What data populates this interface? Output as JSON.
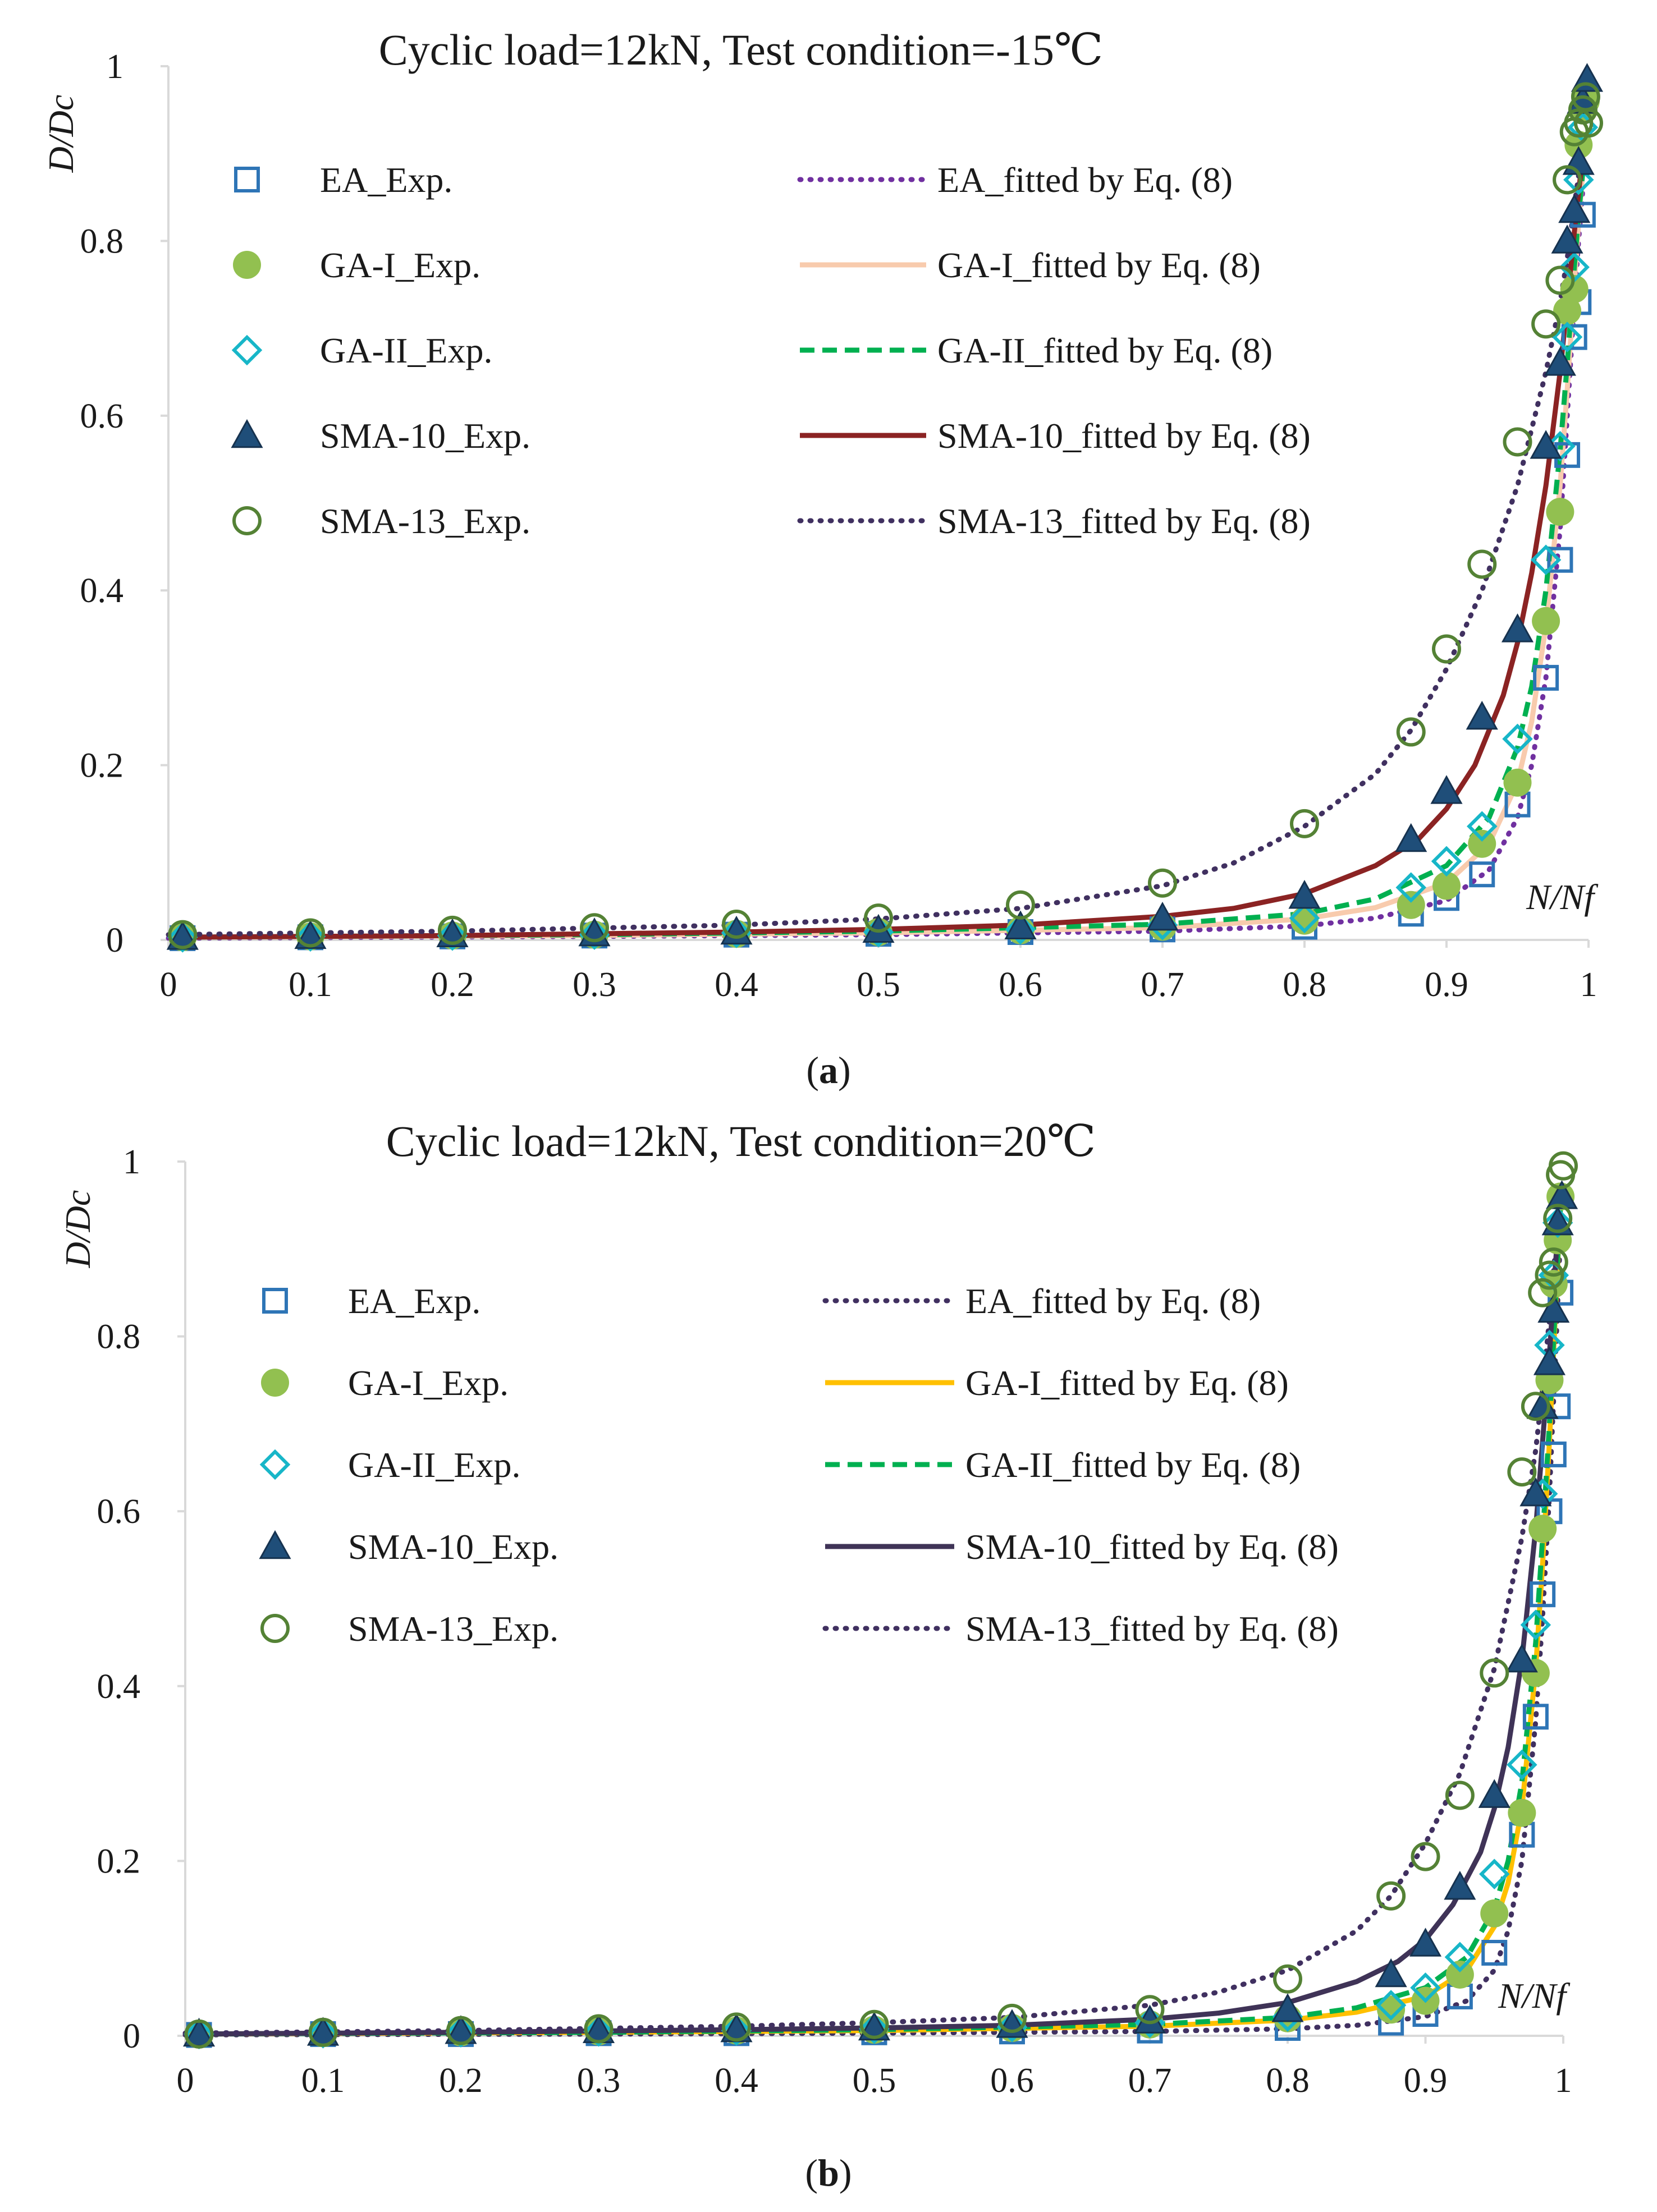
{
  "chart_data": [
    {
      "type": "line",
      "title": "Cyclic load=12kN, Test condition=-15℃",
      "caption": "(a)",
      "caption_bold": "a",
      "xlabel": "N/Nf",
      "ylabel": "D/Dc",
      "xlim": [
        0,
        1
      ],
      "ylim": [
        0,
        1
      ],
      "xticks": [
        "0",
        "0.1",
        "0.2",
        "0.3",
        "0.4",
        "0.5",
        "0.6",
        "0.7",
        "0.8",
        "0.9",
        "1"
      ],
      "yticks": [
        "0",
        "0.2",
        "0.4",
        "0.6",
        "0.8",
        "1"
      ],
      "series": [
        {
          "name": "EA_Exp.",
          "kind": "scatter",
          "marker": "square",
          "color": "#2e75b6",
          "x": [
            0.01,
            0.1,
            0.2,
            0.3,
            0.4,
            0.5,
            0.6,
            0.7,
            0.8,
            0.875,
            0.9,
            0.925,
            0.95,
            0.97,
            0.98,
            0.985,
            0.99,
            0.993,
            0.996
          ],
          "y": [
            0.002,
            0.003,
            0.004,
            0.005,
            0.006,
            0.007,
            0.009,
            0.012,
            0.015,
            0.03,
            0.048,
            0.075,
            0.155,
            0.3,
            0.435,
            0.555,
            0.69,
            0.73,
            0.83
          ]
        },
        {
          "name": "GA-I_Exp.",
          "kind": "scatter",
          "marker": "filled-circle",
          "color": "#92c050",
          "x": [
            0.01,
            0.1,
            0.2,
            0.3,
            0.4,
            0.5,
            0.6,
            0.7,
            0.8,
            0.875,
            0.9,
            0.925,
            0.95,
            0.97,
            0.98,
            0.985,
            0.99,
            0.993,
            0.996,
            0.998
          ],
          "y": [
            0.003,
            0.004,
            0.005,
            0.006,
            0.007,
            0.009,
            0.011,
            0.015,
            0.022,
            0.04,
            0.062,
            0.11,
            0.18,
            0.365,
            0.49,
            0.72,
            0.745,
            0.91,
            0.95,
            0.96
          ]
        },
        {
          "name": "GA-II_Exp.",
          "kind": "scatter",
          "marker": "diamond",
          "color": "#17b6c8",
          "x": [
            0.01,
            0.1,
            0.2,
            0.3,
            0.4,
            0.5,
            0.6,
            0.7,
            0.8,
            0.875,
            0.9,
            0.925,
            0.95,
            0.97,
            0.98,
            0.985,
            0.99,
            0.993,
            0.996
          ],
          "y": [
            0.003,
            0.004,
            0.005,
            0.006,
            0.008,
            0.009,
            0.012,
            0.017,
            0.025,
            0.06,
            0.09,
            0.13,
            0.23,
            0.435,
            0.565,
            0.69,
            0.77,
            0.87,
            0.93
          ]
        },
        {
          "name": "SMA-10_Exp.",
          "kind": "scatter",
          "marker": "triangle",
          "color": "#1f4e79",
          "x": [
            0.01,
            0.1,
            0.2,
            0.3,
            0.4,
            0.5,
            0.6,
            0.7,
            0.8,
            0.875,
            0.9,
            0.925,
            0.95,
            0.97,
            0.98,
            0.985,
            0.99,
            0.993,
            0.996,
            0.999
          ],
          "y": [
            0.003,
            0.004,
            0.006,
            0.007,
            0.009,
            0.011,
            0.015,
            0.025,
            0.05,
            0.115,
            0.17,
            0.255,
            0.355,
            0.565,
            0.66,
            0.8,
            0.835,
            0.89,
            0.96,
            0.985
          ]
        },
        {
          "name": "SMA-13_Exp.",
          "kind": "scatter",
          "marker": "open-circle",
          "color": "#548235",
          "x": [
            0.01,
            0.1,
            0.2,
            0.3,
            0.4,
            0.5,
            0.6,
            0.7,
            0.8,
            0.875,
            0.9,
            0.925,
            0.95,
            0.97,
            0.98,
            0.985,
            0.99,
            0.993,
            0.996,
            0.998,
            1.0
          ],
          "y": [
            0.006,
            0.008,
            0.011,
            0.014,
            0.018,
            0.025,
            0.04,
            0.065,
            0.133,
            0.238,
            0.333,
            0.43,
            0.57,
            0.705,
            0.755,
            0.87,
            0.925,
            0.935,
            0.95,
            0.965,
            0.935
          ]
        },
        {
          "name": "EA_fitted by Eq. (8)",
          "kind": "line",
          "dash": "dot",
          "color": "#7030a0",
          "x": [
            0.0,
            0.3,
            0.5,
            0.7,
            0.8,
            0.85,
            0.9,
            0.93,
            0.95,
            0.96,
            0.97,
            0.98,
            0.985,
            0.99,
            0.993,
            0.996
          ],
          "y": [
            0.002,
            0.004,
            0.006,
            0.01,
            0.016,
            0.025,
            0.045,
            0.08,
            0.14,
            0.2,
            0.3,
            0.47,
            0.6,
            0.73,
            0.8,
            0.86
          ]
        },
        {
          "name": "GA-I_fitted by Eq. (8)",
          "kind": "line",
          "dash": "solid",
          "color": "#f8cbad",
          "x": [
            0.0,
            0.3,
            0.5,
            0.7,
            0.8,
            0.85,
            0.9,
            0.93,
            0.95,
            0.96,
            0.97,
            0.98,
            0.985,
            0.99,
            0.993,
            0.996
          ],
          "y": [
            0.003,
            0.005,
            0.008,
            0.014,
            0.024,
            0.037,
            0.065,
            0.11,
            0.18,
            0.25,
            0.36,
            0.52,
            0.63,
            0.75,
            0.82,
            0.88
          ]
        },
        {
          "name": "GA-II_fitted by Eq. (8)",
          "kind": "line",
          "dash": "dash",
          "color": "#00b050",
          "x": [
            0.0,
            0.3,
            0.5,
            0.7,
            0.8,
            0.85,
            0.9,
            0.93,
            0.95,
            0.96,
            0.97,
            0.98,
            0.985,
            0.99,
            0.993,
            0.996
          ],
          "y": [
            0.003,
            0.006,
            0.01,
            0.018,
            0.03,
            0.047,
            0.085,
            0.14,
            0.22,
            0.29,
            0.4,
            0.56,
            0.66,
            0.77,
            0.83,
            0.88
          ]
        },
        {
          "name": "SMA-10_fitted by Eq. (8)",
          "kind": "line",
          "dash": "solid",
          "color": "#8b2323",
          "x": [
            0.0,
            0.2,
            0.4,
            0.5,
            0.6,
            0.7,
            0.75,
            0.8,
            0.85,
            0.88,
            0.9,
            0.92,
            0.94,
            0.95,
            0.96,
            0.97,
            0.98,
            0.985,
            0.99,
            0.996
          ],
          "y": [
            0.003,
            0.005,
            0.009,
            0.012,
            0.017,
            0.027,
            0.036,
            0.053,
            0.085,
            0.115,
            0.15,
            0.2,
            0.28,
            0.34,
            0.42,
            0.52,
            0.65,
            0.73,
            0.81,
            0.9
          ]
        },
        {
          "name": "SMA-13_fitted by Eq. (8)",
          "kind": "line",
          "dash": "dot",
          "color": "#403060",
          "x": [
            0.0,
            0.2,
            0.4,
            0.5,
            0.6,
            0.7,
            0.75,
            0.8,
            0.85,
            0.875,
            0.9,
            0.925,
            0.95,
            0.97,
            0.98,
            0.985,
            0.99,
            0.996
          ],
          "y": [
            0.006,
            0.01,
            0.017,
            0.024,
            0.036,
            0.062,
            0.088,
            0.13,
            0.19,
            0.24,
            0.31,
            0.4,
            0.52,
            0.65,
            0.73,
            0.78,
            0.84,
            0.91
          ]
        }
      ]
    },
    {
      "type": "line",
      "title": "Cyclic load=12kN, Test condition=20℃",
      "caption": "(b)",
      "caption_bold": "b",
      "xlabel": "N/Nf",
      "ylabel": "D/Dc",
      "xlim": [
        0,
        1
      ],
      "ylim": [
        0,
        1
      ],
      "xticks": [
        "0",
        "0.1",
        "0.2",
        "0.3",
        "0.4",
        "0.5",
        "0.6",
        "0.7",
        "0.8",
        "0.9",
        "1"
      ],
      "yticks": [
        "0",
        "0.2",
        "0.4",
        "0.6",
        "0.8",
        "1"
      ],
      "series": [
        {
          "name": "EA_Exp.",
          "kind": "scatter",
          "marker": "square",
          "color": "#2e75b6",
          "x": [
            0.01,
            0.1,
            0.2,
            0.3,
            0.4,
            0.5,
            0.6,
            0.7,
            0.8,
            0.875,
            0.9,
            0.925,
            0.95,
            0.97,
            0.98,
            0.985,
            0.99,
            0.993,
            0.996,
            0.998
          ],
          "y": [
            0.001,
            0.002,
            0.002,
            0.003,
            0.003,
            0.004,
            0.005,
            0.006,
            0.009,
            0.015,
            0.025,
            0.045,
            0.095,
            0.23,
            0.365,
            0.505,
            0.6,
            0.665,
            0.72,
            0.85
          ]
        },
        {
          "name": "GA-I_Exp.",
          "kind": "scatter",
          "marker": "filled-circle",
          "color": "#92c050",
          "x": [
            0.01,
            0.1,
            0.2,
            0.3,
            0.4,
            0.5,
            0.6,
            0.7,
            0.8,
            0.875,
            0.9,
            0.925,
            0.95,
            0.97,
            0.98,
            0.985,
            0.99,
            0.993,
            0.996,
            0.998
          ],
          "y": [
            0.002,
            0.003,
            0.004,
            0.005,
            0.006,
            0.007,
            0.009,
            0.013,
            0.02,
            0.03,
            0.04,
            0.07,
            0.14,
            0.255,
            0.415,
            0.58,
            0.75,
            0.86,
            0.91,
            0.96
          ]
        },
        {
          "name": "GA-II_Exp.",
          "kind": "scatter",
          "marker": "diamond",
          "color": "#17b6c8",
          "x": [
            0.01,
            0.1,
            0.2,
            0.3,
            0.4,
            0.5,
            0.6,
            0.7,
            0.8,
            0.875,
            0.9,
            0.925,
            0.95,
            0.97,
            0.98,
            0.985,
            0.99,
            0.993,
            0.996
          ],
          "y": [
            0.002,
            0.003,
            0.004,
            0.005,
            0.006,
            0.008,
            0.01,
            0.015,
            0.022,
            0.035,
            0.055,
            0.09,
            0.185,
            0.31,
            0.47,
            0.62,
            0.79,
            0.87,
            0.93
          ]
        },
        {
          "name": "SMA-10_Exp.",
          "kind": "scatter",
          "marker": "triangle",
          "color": "#1f4e79",
          "x": [
            0.01,
            0.1,
            0.2,
            0.3,
            0.4,
            0.5,
            0.6,
            0.7,
            0.8,
            0.875,
            0.9,
            0.925,
            0.95,
            0.97,
            0.98,
            0.985,
            0.99,
            0.993,
            0.996,
            0.999
          ],
          "y": [
            0.002,
            0.003,
            0.005,
            0.006,
            0.007,
            0.009,
            0.012,
            0.017,
            0.03,
            0.07,
            0.105,
            0.17,
            0.275,
            0.43,
            0.62,
            0.72,
            0.77,
            0.83,
            0.93,
            0.96
          ]
        },
        {
          "name": "SMA-13_Exp.",
          "kind": "scatter",
          "marker": "open-circle",
          "color": "#548235",
          "x": [
            0.01,
            0.1,
            0.2,
            0.3,
            0.4,
            0.5,
            0.6,
            0.7,
            0.8,
            0.875,
            0.9,
            0.925,
            0.95,
            0.97,
            0.98,
            0.985,
            0.99,
            0.993,
            0.996,
            0.998,
            1.0
          ],
          "y": [
            0.002,
            0.004,
            0.006,
            0.008,
            0.01,
            0.013,
            0.02,
            0.03,
            0.065,
            0.16,
            0.205,
            0.275,
            0.415,
            0.645,
            0.72,
            0.85,
            0.87,
            0.885,
            0.935,
            0.985,
            0.995
          ]
        },
        {
          "name": "EA_fitted by Eq. (8)",
          "kind": "line",
          "dash": "dot",
          "color": "#403060",
          "x": [
            0.0,
            0.3,
            0.5,
            0.7,
            0.8,
            0.85,
            0.9,
            0.93,
            0.95,
            0.96,
            0.97,
            0.98,
            0.985,
            0.99,
            0.995,
            0.998
          ],
          "y": [
            0.001,
            0.002,
            0.003,
            0.005,
            0.008,
            0.012,
            0.022,
            0.04,
            0.075,
            0.12,
            0.2,
            0.36,
            0.48,
            0.62,
            0.8,
            0.92
          ]
        },
        {
          "name": "GA-I_fitted by Eq. (8)",
          "kind": "line",
          "dash": "solid",
          "color": "#ffc000",
          "x": [
            0.0,
            0.3,
            0.5,
            0.7,
            0.8,
            0.85,
            0.9,
            0.93,
            0.95,
            0.96,
            0.97,
            0.98,
            0.985,
            0.99,
            0.995,
            0.998
          ],
          "y": [
            0.002,
            0.004,
            0.006,
            0.011,
            0.018,
            0.027,
            0.045,
            0.075,
            0.125,
            0.175,
            0.26,
            0.42,
            0.54,
            0.68,
            0.85,
            0.95
          ]
        },
        {
          "name": "GA-II_fitted by Eq. (8)",
          "kind": "line",
          "dash": "dash",
          "color": "#00b050",
          "x": [
            0.0,
            0.3,
            0.5,
            0.7,
            0.8,
            0.85,
            0.9,
            0.93,
            0.95,
            0.96,
            0.97,
            0.98,
            0.985,
            0.99,
            0.995,
            0.998
          ],
          "y": [
            0.002,
            0.004,
            0.007,
            0.013,
            0.021,
            0.032,
            0.055,
            0.09,
            0.145,
            0.2,
            0.29,
            0.45,
            0.57,
            0.7,
            0.86,
            0.95
          ]
        },
        {
          "name": "SMA-10_fitted by Eq. (8)",
          "kind": "line",
          "dash": "solid",
          "color": "#3f3357",
          "x": [
            0.0,
            0.2,
            0.4,
            0.5,
            0.6,
            0.7,
            0.75,
            0.8,
            0.85,
            0.88,
            0.9,
            0.92,
            0.94,
            0.95,
            0.96,
            0.97,
            0.98,
            0.985,
            0.99,
            0.996
          ],
          "y": [
            0.002,
            0.004,
            0.007,
            0.009,
            0.012,
            0.019,
            0.026,
            0.038,
            0.062,
            0.085,
            0.11,
            0.15,
            0.21,
            0.26,
            0.33,
            0.43,
            0.58,
            0.68,
            0.78,
            0.92
          ]
        },
        {
          "name": "SMA-13_fitted by Eq. (8)",
          "kind": "line",
          "dash": "dot",
          "color": "#403060",
          "x": [
            0.0,
            0.2,
            0.4,
            0.5,
            0.6,
            0.7,
            0.75,
            0.8,
            0.85,
            0.875,
            0.9,
            0.925,
            0.95,
            0.97,
            0.98,
            0.985,
            0.99,
            0.996
          ],
          "y": [
            0.003,
            0.006,
            0.011,
            0.015,
            0.021,
            0.035,
            0.05,
            0.075,
            0.12,
            0.16,
            0.22,
            0.3,
            0.42,
            0.57,
            0.67,
            0.74,
            0.82,
            0.93
          ]
        }
      ]
    }
  ]
}
